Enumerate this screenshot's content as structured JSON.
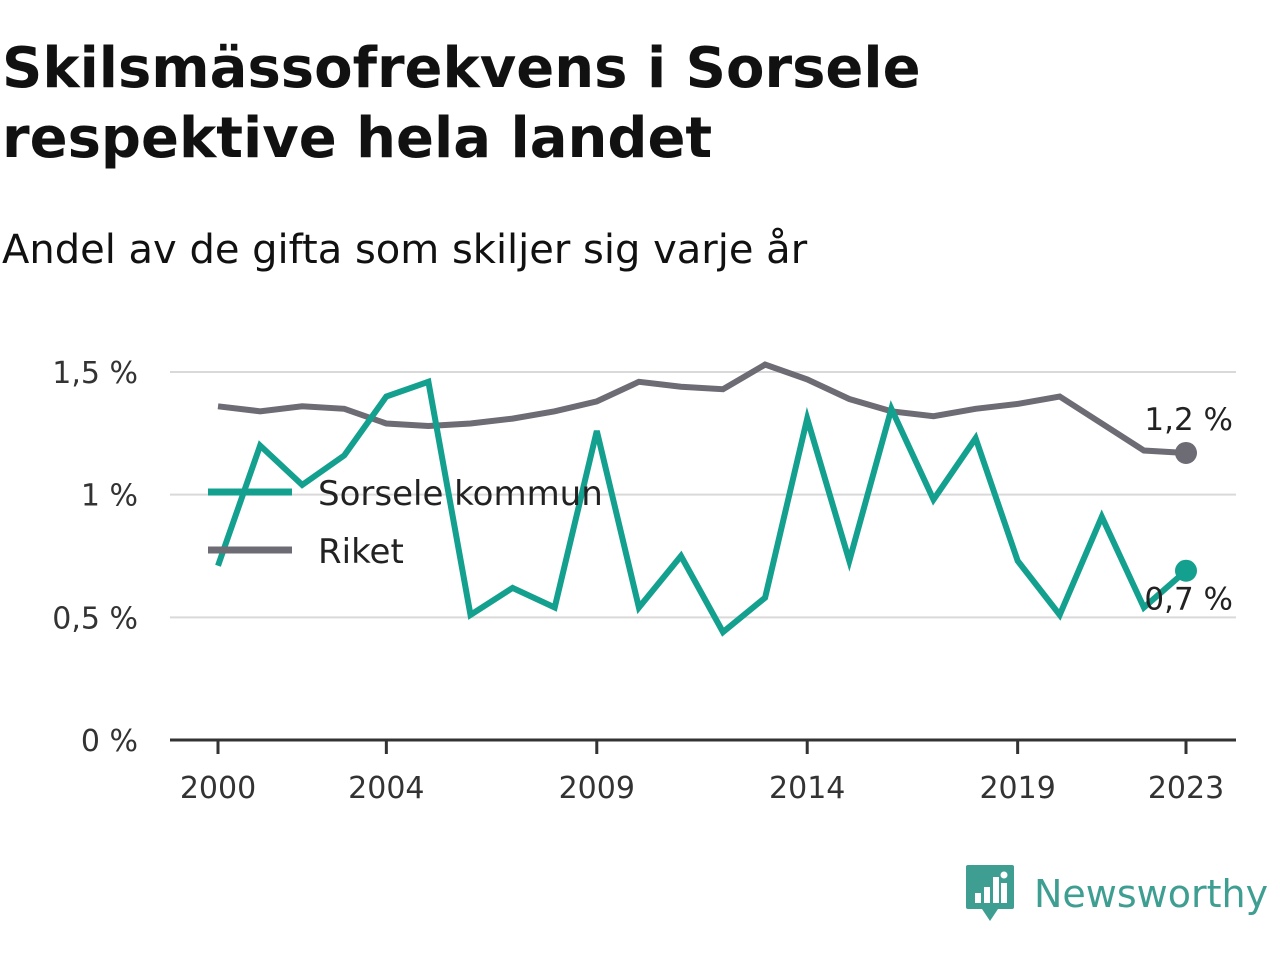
{
  "title": "Skilsmässofrekvens i Sorsele respektive hela landet",
  "subtitle": "Andel av de gifta som skiljer sig varje år",
  "brand": {
    "name": "Newsworthy",
    "icon": "newsworthy-logo-icon"
  },
  "colors": {
    "sorsele": "#14a08f",
    "riket": "#6d6b73",
    "grid": "#d9d9d9",
    "axis": "#333333"
  },
  "chart_data": {
    "type": "line",
    "x": [
      2000,
      2001,
      2002,
      2003,
      2004,
      2005,
      2006,
      2007,
      2008,
      2009,
      2010,
      2011,
      2012,
      2013,
      2014,
      2015,
      2016,
      2017,
      2018,
      2019,
      2020,
      2021,
      2022,
      2023
    ],
    "series": [
      {
        "name": "Sorsele kommun",
        "key": "sorsele",
        "values": [
          0.71,
          1.2,
          1.04,
          1.16,
          1.4,
          1.46,
          0.51,
          0.62,
          0.54,
          1.26,
          0.54,
          0.75,
          0.44,
          0.58,
          1.31,
          0.73,
          1.35,
          0.98,
          1.23,
          0.73,
          0.51,
          0.91,
          0.54,
          0.69
        ],
        "end_label": "0,7 %"
      },
      {
        "name": "Riket",
        "key": "riket",
        "values": [
          1.36,
          1.34,
          1.36,
          1.35,
          1.29,
          1.28,
          1.29,
          1.31,
          1.34,
          1.38,
          1.46,
          1.44,
          1.43,
          1.53,
          1.47,
          1.39,
          1.34,
          1.32,
          1.35,
          1.37,
          1.4,
          1.29,
          1.18,
          1.17
        ],
        "end_label": "1,2 %"
      }
    ],
    "y_ticks": [
      {
        "value": 0,
        "label": "0 %"
      },
      {
        "value": 0.5,
        "label": "0,5 %"
      },
      {
        "value": 1,
        "label": "1 %"
      },
      {
        "value": 1.5,
        "label": "1,5 %"
      }
    ],
    "x_ticks": [
      {
        "value": 2000,
        "label": "2000"
      },
      {
        "value": 2004,
        "label": "2004"
      },
      {
        "value": 2009,
        "label": "2009"
      },
      {
        "value": 2014,
        "label": "2014"
      },
      {
        "value": 2019,
        "label": "2019"
      },
      {
        "value": 2023,
        "label": "2023"
      }
    ],
    "ylim": [
      0,
      1.5
    ],
    "xlim": [
      2000,
      2023
    ],
    "grid": true,
    "legend": "left, inside plot",
    "title": "Skilsmässofrekvens i Sorsele respektive hela landet",
    "subtitle": "Andel av de gifta som skiljer sig varje år",
    "xlabel": "",
    "ylabel": ""
  }
}
